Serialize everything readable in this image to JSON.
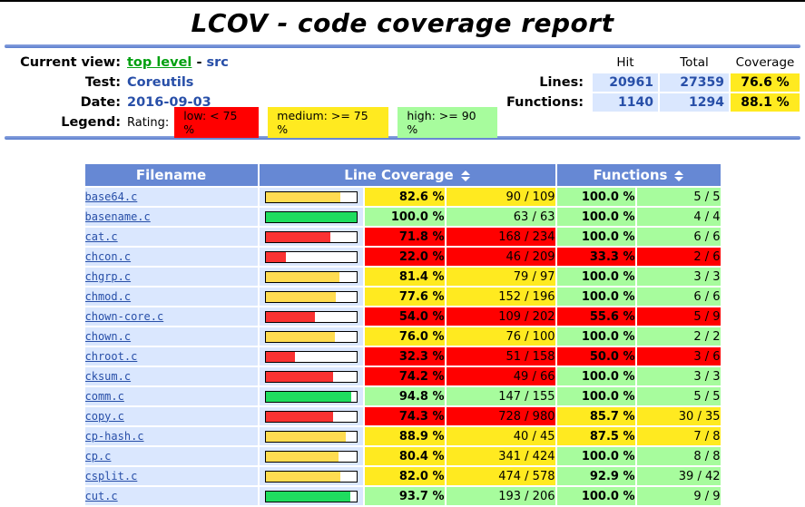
{
  "title": "LCOV - code coverage report",
  "colors": {
    "table_head": "#6688D4",
    "cell_blue": "#DAE7FE",
    "link_blue": "#284FA8",
    "link_green": "#00A010",
    "low": "#FF0000",
    "medium": "#FFEA20",
    "high": "#A7FC9D"
  },
  "header": {
    "current_view_label": "Current view:",
    "current_view_link": "top level",
    "current_view_sep": " - ",
    "current_view_page": "src",
    "test_label": "Test:",
    "test_value": "Coreutils",
    "date_label": "Date:",
    "date_value": "2016-09-03",
    "legend_label": "Legend:",
    "rating_label": "Rating:",
    "legend": [
      {
        "label": "low: < 75 %",
        "level": "lo"
      },
      {
        "label": "medium: >= 75 %",
        "level": "med"
      },
      {
        "label": "high: >= 90 %",
        "level": "hi"
      }
    ],
    "summary": {
      "col_headers": [
        "Hit",
        "Total",
        "Coverage"
      ],
      "rows": [
        {
          "label": "Lines:",
          "hit": "20961",
          "total": "27359",
          "coverage": "76.6 %"
        },
        {
          "label": "Functions:",
          "hit": "1140",
          "total": "1294",
          "coverage": "88.1 %"
        }
      ]
    }
  },
  "table": {
    "filename_header": "Filename",
    "line_coverage_header": "Line Coverage",
    "functions_header": "Functions",
    "rows": [
      {
        "file": "base64.c",
        "line_pct": "82.6 %",
        "line_num": 82.6,
        "line_ratio": "90 / 109",
        "line_level": "med",
        "func_pct": "100.0 %",
        "func_ratio": "5 / 5",
        "func_level": "hi"
      },
      {
        "file": "basename.c",
        "line_pct": "100.0 %",
        "line_num": 100.0,
        "line_ratio": "63 / 63",
        "line_level": "hi",
        "func_pct": "100.0 %",
        "func_ratio": "4 / 4",
        "func_level": "hi"
      },
      {
        "file": "cat.c",
        "line_pct": "71.8 %",
        "line_num": 71.8,
        "line_ratio": "168 / 234",
        "line_level": "lo",
        "func_pct": "100.0 %",
        "func_ratio": "6 / 6",
        "func_level": "hi"
      },
      {
        "file": "chcon.c",
        "line_pct": "22.0 %",
        "line_num": 22.0,
        "line_ratio": "46 / 209",
        "line_level": "lo",
        "func_pct": "33.3 %",
        "func_ratio": "2 / 6",
        "func_level": "lo"
      },
      {
        "file": "chgrp.c",
        "line_pct": "81.4 %",
        "line_num": 81.4,
        "line_ratio": "79 / 97",
        "line_level": "med",
        "func_pct": "100.0 %",
        "func_ratio": "3 / 3",
        "func_level": "hi"
      },
      {
        "file": "chmod.c",
        "line_pct": "77.6 %",
        "line_num": 77.6,
        "line_ratio": "152 / 196",
        "line_level": "med",
        "func_pct": "100.0 %",
        "func_ratio": "6 / 6",
        "func_level": "hi"
      },
      {
        "file": "chown-core.c",
        "line_pct": "54.0 %",
        "line_num": 54.0,
        "line_ratio": "109 / 202",
        "line_level": "lo",
        "func_pct": "55.6 %",
        "func_ratio": "5 / 9",
        "func_level": "lo"
      },
      {
        "file": "chown.c",
        "line_pct": "76.0 %",
        "line_num": 76.0,
        "line_ratio": "76 / 100",
        "line_level": "med",
        "func_pct": "100.0 %",
        "func_ratio": "2 / 2",
        "func_level": "hi"
      },
      {
        "file": "chroot.c",
        "line_pct": "32.3 %",
        "line_num": 32.3,
        "line_ratio": "51 / 158",
        "line_level": "lo",
        "func_pct": "50.0 %",
        "func_ratio": "3 / 6",
        "func_level": "lo"
      },
      {
        "file": "cksum.c",
        "line_pct": "74.2 %",
        "line_num": 74.2,
        "line_ratio": "49 / 66",
        "line_level": "lo",
        "func_pct": "100.0 %",
        "func_ratio": "3 / 3",
        "func_level": "hi"
      },
      {
        "file": "comm.c",
        "line_pct": "94.8 %",
        "line_num": 94.8,
        "line_ratio": "147 / 155",
        "line_level": "hi",
        "func_pct": "100.0 %",
        "func_ratio": "5 / 5",
        "func_level": "hi"
      },
      {
        "file": "copy.c",
        "line_pct": "74.3 %",
        "line_num": 74.3,
        "line_ratio": "728 / 980",
        "line_level": "lo",
        "func_pct": "85.7 %",
        "func_ratio": "30 / 35",
        "func_level": "med"
      },
      {
        "file": "cp-hash.c",
        "line_pct": "88.9 %",
        "line_num": 88.9,
        "line_ratio": "40 / 45",
        "line_level": "med",
        "func_pct": "87.5 %",
        "func_ratio": "7 / 8",
        "func_level": "med"
      },
      {
        "file": "cp.c",
        "line_pct": "80.4 %",
        "line_num": 80.4,
        "line_ratio": "341 / 424",
        "line_level": "med",
        "func_pct": "100.0 %",
        "func_ratio": "8 / 8",
        "func_level": "hi"
      },
      {
        "file": "csplit.c",
        "line_pct": "82.0 %",
        "line_num": 82.0,
        "line_ratio": "474 / 578",
        "line_level": "med",
        "func_pct": "92.9 %",
        "func_ratio": "39 / 42",
        "func_level": "hi"
      },
      {
        "file": "cut.c",
        "line_pct": "93.7 %",
        "line_num": 93.7,
        "line_ratio": "193 / 206",
        "line_level": "hi",
        "func_pct": "100.0 %",
        "func_ratio": "9 / 9",
        "func_level": "hi"
      }
    ]
  }
}
